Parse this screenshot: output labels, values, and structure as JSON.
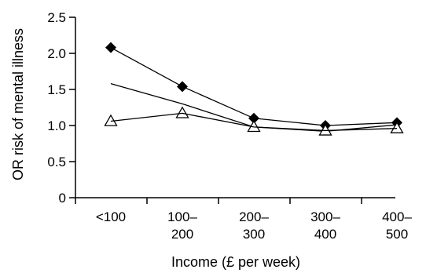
{
  "chart_data": {
    "type": "line",
    "title": "",
    "xlabel": "Income (£ per week)",
    "ylabel": "OR risk of mental illness",
    "categories": [
      [
        "<100"
      ],
      [
        "100–",
        "200"
      ],
      [
        "200–",
        "300"
      ],
      [
        "300–",
        "400"
      ],
      [
        "400–",
        "500"
      ]
    ],
    "yticks": [
      "0",
      "0.5",
      "1.0",
      "1.5",
      "2.0",
      "2.5"
    ],
    "ylim": [
      0,
      2.5
    ],
    "grid": false,
    "legend": "none",
    "series": [
      {
        "marker": "filled-diamond",
        "color": "#000000",
        "values": [
          2.08,
          1.54,
          1.1,
          1.0,
          1.04
        ]
      },
      {
        "marker": "filled-square",
        "color": "#000000",
        "values": [
          1.58,
          1.3,
          0.98,
          0.92,
          1.01
        ]
      },
      {
        "marker": "open-triangle",
        "color": "#000000",
        "values": [
          1.06,
          1.17,
          0.98,
          0.93,
          0.96
        ]
      }
    ]
  }
}
